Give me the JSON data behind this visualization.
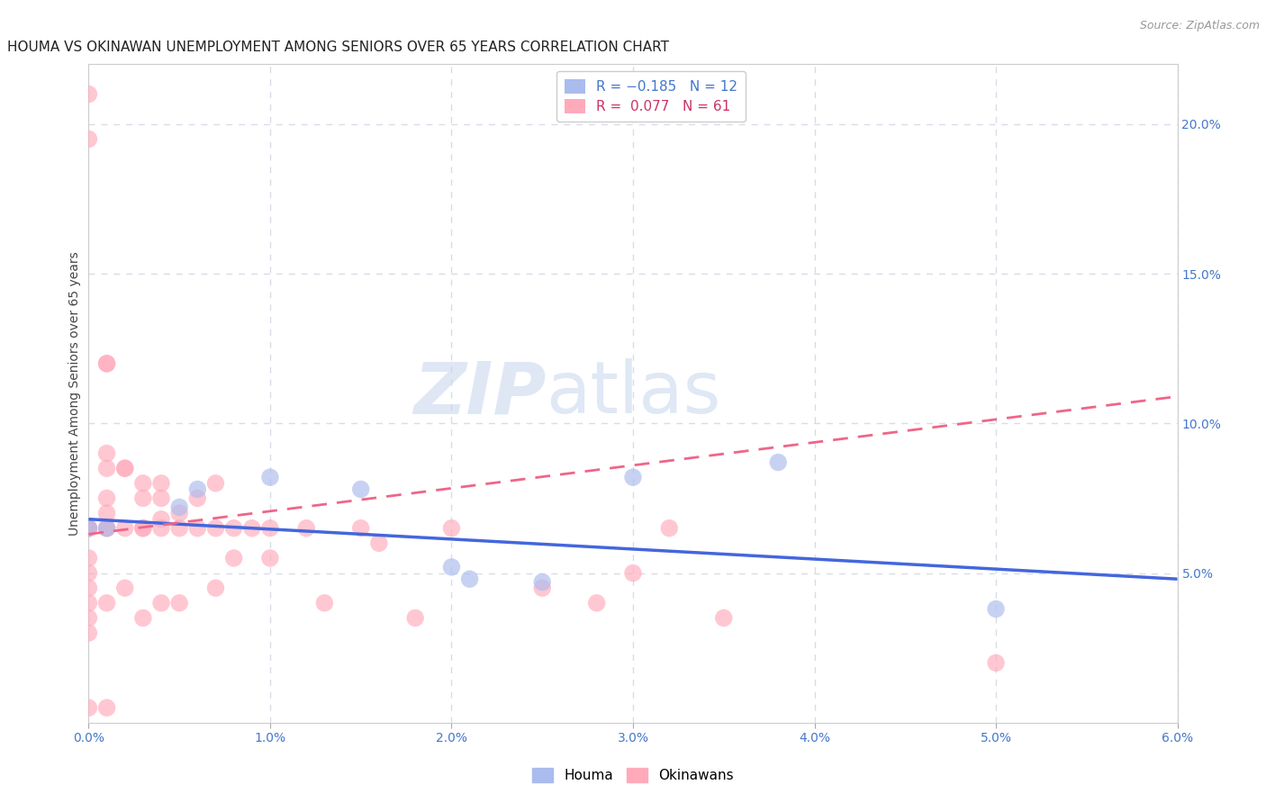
{
  "title": "HOUMA VS OKINAWAN UNEMPLOYMENT AMONG SENIORS OVER 65 YEARS CORRELATION CHART",
  "source": "Source: ZipAtlas.com",
  "xlabel": "",
  "ylabel": "Unemployment Among Seniors over 65 years",
  "xlim": [
    0.0,
    0.06
  ],
  "ylim": [
    0.0,
    0.22
  ],
  "xticks": [
    0.0,
    0.01,
    0.02,
    0.03,
    0.04,
    0.05,
    0.06
  ],
  "xticklabels": [
    "0.0%",
    "1.0%",
    "2.0%",
    "3.0%",
    "4.0%",
    "5.0%",
    "6.0%"
  ],
  "yticks_right": [
    0.05,
    0.1,
    0.15,
    0.2
  ],
  "yticklabels_right": [
    "5.0%",
    "10.0%",
    "15.0%",
    "20.0%"
  ],
  "grid_color": "#d8dce8",
  "houma_color": "#aabbee",
  "okinawan_color": "#ffaabb",
  "houma_line_color": "#4466dd",
  "okinawan_line_color": "#ee6688",
  "houma_R": -0.185,
  "houma_N": 12,
  "okinawan_R": 0.077,
  "okinawan_N": 61,
  "watermark_zip": "ZIP",
  "watermark_atlas": "atlas",
  "houma_x": [
    0.0,
    0.001,
    0.005,
    0.006,
    0.01,
    0.015,
    0.02,
    0.021,
    0.025,
    0.03,
    0.038,
    0.05
  ],
  "houma_y": [
    0.065,
    0.065,
    0.072,
    0.078,
    0.082,
    0.078,
    0.052,
    0.048,
    0.047,
    0.082,
    0.087,
    0.038
  ],
  "okinawan_x": [
    0.0,
    0.0,
    0.0,
    0.0,
    0.0,
    0.0,
    0.0,
    0.0,
    0.0,
    0.0,
    0.0,
    0.0,
    0.001,
    0.001,
    0.001,
    0.001,
    0.001,
    0.001,
    0.001,
    0.001,
    0.001,
    0.001,
    0.002,
    0.002,
    0.002,
    0.002,
    0.003,
    0.003,
    0.003,
    0.003,
    0.003,
    0.004,
    0.004,
    0.004,
    0.004,
    0.004,
    0.005,
    0.005,
    0.005,
    0.006,
    0.006,
    0.007,
    0.007,
    0.007,
    0.008,
    0.008,
    0.009,
    0.01,
    0.01,
    0.012,
    0.013,
    0.015,
    0.016,
    0.018,
    0.02,
    0.025,
    0.028,
    0.03,
    0.032,
    0.035,
    0.05
  ],
  "okinawan_y": [
    0.21,
    0.195,
    0.065,
    0.065,
    0.065,
    0.055,
    0.05,
    0.045,
    0.04,
    0.035,
    0.03,
    0.005,
    0.12,
    0.12,
    0.09,
    0.085,
    0.075,
    0.07,
    0.065,
    0.065,
    0.04,
    0.005,
    0.085,
    0.085,
    0.065,
    0.045,
    0.08,
    0.075,
    0.065,
    0.065,
    0.035,
    0.08,
    0.075,
    0.068,
    0.065,
    0.04,
    0.07,
    0.065,
    0.04,
    0.075,
    0.065,
    0.08,
    0.065,
    0.045,
    0.065,
    0.055,
    0.065,
    0.065,
    0.055,
    0.065,
    0.04,
    0.065,
    0.06,
    0.035,
    0.065,
    0.045,
    0.04,
    0.05,
    0.065,
    0.035,
    0.02
  ],
  "houma_line_x0": 0.0,
  "houma_line_y0": 0.068,
  "houma_line_x1": 0.06,
  "houma_line_y1": 0.048,
  "okin_line_x0": 0.0,
  "okin_line_y0": 0.063,
  "okin_line_x1": 0.06,
  "okin_line_y1": 0.109,
  "title_fontsize": 11,
  "axis_fontsize": 10,
  "tick_fontsize": 10,
  "legend_fontsize": 11,
  "marker_size": 14,
  "marker_alpha": 0.65,
  "background_color": "#ffffff",
  "plot_bg_color": "#ffffff"
}
